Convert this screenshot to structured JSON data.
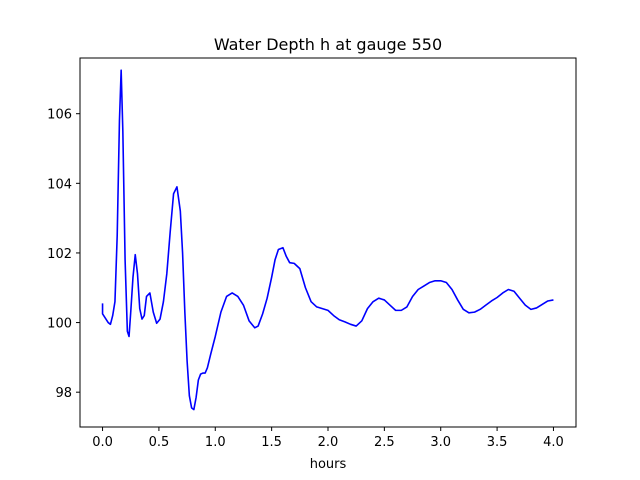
{
  "chart_data": {
    "type": "line",
    "title": "Water Depth h at gauge 550",
    "xlabel": "hours",
    "ylabel": "",
    "xlim": [
      -0.2,
      4.2
    ],
    "ylim": [
      97.0,
      107.6
    ],
    "xticks": [
      0.0,
      0.5,
      1.0,
      1.5,
      2.0,
      2.5,
      3.0,
      3.5,
      4.0
    ],
    "xtick_labels": [
      "0.0",
      "0.5",
      "1.0",
      "1.5",
      "2.0",
      "2.5",
      "3.0",
      "3.5",
      "4.0"
    ],
    "yticks": [
      98,
      100,
      102,
      104,
      106
    ],
    "ytick_labels": [
      "98",
      "100",
      "102",
      "104",
      "106"
    ],
    "grid": false,
    "line_color": "#0000ff",
    "series": [
      {
        "x": [
          0.0,
          0.0,
          0.02,
          0.05,
          0.07,
          0.09,
          0.11,
          0.13,
          0.15,
          0.165,
          0.18,
          0.2,
          0.22,
          0.235,
          0.25,
          0.27,
          0.29,
          0.31,
          0.33,
          0.35,
          0.37,
          0.39,
          0.42,
          0.45,
          0.48,
          0.51,
          0.54,
          0.57,
          0.6,
          0.63,
          0.66,
          0.69,
          0.71,
          0.73,
          0.75,
          0.77,
          0.79,
          0.81,
          0.83,
          0.85,
          0.87,
          0.89,
          0.91,
          0.93,
          0.96,
          1.0,
          1.05,
          1.1,
          1.15,
          1.2,
          1.25,
          1.3,
          1.35,
          1.38,
          1.42,
          1.46,
          1.5,
          1.53,
          1.56,
          1.6,
          1.63,
          1.66,
          1.7,
          1.75,
          1.8,
          1.85,
          1.9,
          1.95,
          2.0,
          2.05,
          2.1,
          2.15,
          2.2,
          2.25,
          2.3,
          2.35,
          2.4,
          2.45,
          2.5,
          2.55,
          2.6,
          2.65,
          2.7,
          2.75,
          2.8,
          2.85,
          2.9,
          2.95,
          3.0,
          3.05,
          3.1,
          3.15,
          3.2,
          3.25,
          3.3,
          3.35,
          3.4,
          3.45,
          3.5,
          3.55,
          3.6,
          3.65,
          3.7,
          3.75,
          3.8,
          3.85,
          3.9,
          3.95,
          4.0
        ],
        "values": [
          100.55,
          100.25,
          100.15,
          100.0,
          99.95,
          100.2,
          100.6,
          102.5,
          105.8,
          107.25,
          105.5,
          101.8,
          99.75,
          99.6,
          100.3,
          101.3,
          101.95,
          101.4,
          100.4,
          100.1,
          100.2,
          100.75,
          100.85,
          100.3,
          99.98,
          100.1,
          100.6,
          101.4,
          102.6,
          103.7,
          103.9,
          103.2,
          102.0,
          100.3,
          98.9,
          97.9,
          97.55,
          97.5,
          97.85,
          98.35,
          98.52,
          98.55,
          98.55,
          98.7,
          99.1,
          99.6,
          100.3,
          100.75,
          100.85,
          100.75,
          100.5,
          100.05,
          99.85,
          99.9,
          100.25,
          100.7,
          101.3,
          101.8,
          102.1,
          102.15,
          101.9,
          101.72,
          101.7,
          101.55,
          101.0,
          100.6,
          100.45,
          100.4,
          100.35,
          100.2,
          100.08,
          100.02,
          99.95,
          99.9,
          100.05,
          100.4,
          100.6,
          100.7,
          100.65,
          100.5,
          100.35,
          100.35,
          100.45,
          100.75,
          100.95,
          101.05,
          101.15,
          101.2,
          101.2,
          101.15,
          100.95,
          100.65,
          100.38,
          100.28,
          100.3,
          100.38,
          100.5,
          100.62,
          100.72,
          100.85,
          100.95,
          100.9,
          100.7,
          100.5,
          100.38,
          100.42,
          100.52,
          100.62,
          100.65
        ]
      }
    ]
  }
}
